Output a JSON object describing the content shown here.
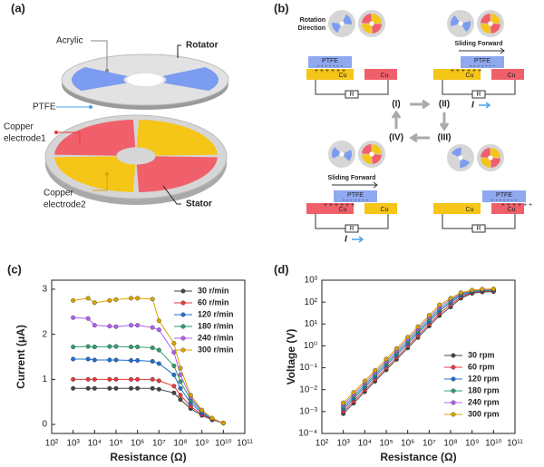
{
  "panel_labels": [
    "(a)",
    "(b)",
    "(c)",
    "(d)"
  ],
  "diagram_a": {
    "acrylic": "Acrylic",
    "rotator": "Rotator",
    "ptfe": "PTFE",
    "electrode1": [
      "Copper",
      "electrode1"
    ],
    "electrode2": [
      "Copper",
      "electrode2"
    ],
    "stator": "Stator"
  },
  "diagram_b": {
    "rotation": [
      "Rotation",
      "Direction"
    ],
    "ptfe": "PTFE",
    "cu": "Cu",
    "r": "R",
    "states": [
      "(I)",
      "(II)",
      "(III)",
      "(IV)"
    ],
    "sliding": "Sliding Forward",
    "current": "I",
    "plus": "+ + + + + +",
    "minus": "- - - - - - -"
  },
  "chart_data": [
    {
      "type": "line",
      "xlabel": "Resistance (Ω)",
      "ylabel": "Current (μA)",
      "xscale": "log",
      "yscale": "linear",
      "legend": "upper right",
      "xlim": [
        100,
        100000000000
      ],
      "ylim": [
        -0.2,
        3.2
      ],
      "xticks": [
        {
          "value": 100,
          "label": "10²"
        },
        {
          "value": 1000,
          "label": "10³"
        },
        {
          "value": 10000,
          "label": "10⁴"
        },
        {
          "value": 100000,
          "label": "10⁵"
        },
        {
          "value": 1000000,
          "label": "10⁶"
        },
        {
          "value": 10000000,
          "label": "10⁷"
        },
        {
          "value": 100000000,
          "label": "10⁸"
        },
        {
          "value": 1000000000,
          "label": "10⁹"
        },
        {
          "value": 10000000000,
          "label": "10¹⁰"
        },
        {
          "value": 100000000000,
          "label": "10¹¹"
        }
      ],
      "yticks": [
        0,
        1,
        2,
        3
      ],
      "x": [
        1000,
        5000,
        10000,
        50000,
        100000,
        500000,
        1000000,
        5000000,
        10000000,
        50000000,
        100000000,
        300000000,
        1000000000,
        3000000000,
        10000000000
      ],
      "series": [
        {
          "name": "30 r/min",
          "color": "#444444",
          "values": [
            0.8,
            0.8,
            0.8,
            0.8,
            0.8,
            0.8,
            0.8,
            0.8,
            0.78,
            0.7,
            0.55,
            0.35,
            0.2,
            0.1,
            0.03
          ]
        },
        {
          "name": "60 r/min",
          "color": "#e8383d",
          "values": [
            1.0,
            1.0,
            1.0,
            1.0,
            1.0,
            1.0,
            1.0,
            1.0,
            0.97,
            0.85,
            0.65,
            0.4,
            0.22,
            0.11,
            0.03
          ]
        },
        {
          "name": "120 r/min",
          "color": "#1f6fd0",
          "values": [
            1.45,
            1.45,
            1.43,
            1.43,
            1.43,
            1.42,
            1.42,
            1.4,
            1.35,
            1.1,
            0.8,
            0.48,
            0.25,
            0.12,
            0.03
          ]
        },
        {
          "name": "180 r/min",
          "color": "#2e9e6e",
          "values": [
            1.72,
            1.73,
            1.72,
            1.73,
            1.73,
            1.72,
            1.72,
            1.7,
            1.65,
            1.3,
            0.95,
            0.55,
            0.28,
            0.13,
            0.03
          ]
        },
        {
          "name": "240 r/min",
          "color": "#b060f0",
          "values": [
            2.37,
            2.35,
            2.2,
            2.18,
            2.17,
            2.2,
            2.2,
            2.15,
            2.1,
            1.6,
            1.1,
            0.6,
            0.3,
            0.13,
            0.03
          ]
        },
        {
          "name": "300 r/min",
          "color": "#d9a400",
          "values": [
            2.75,
            2.8,
            2.7,
            2.75,
            2.77,
            2.8,
            2.8,
            2.78,
            2.3,
            1.8,
            1.25,
            0.65,
            0.32,
            0.14,
            0.03
          ]
        }
      ]
    },
    {
      "type": "line",
      "xlabel": "Resistance (Ω)",
      "ylabel": "Voltage (V)",
      "xscale": "log",
      "yscale": "log",
      "legend": "lower right",
      "xlim": [
        100,
        100000000000
      ],
      "ylim": [
        0.0001,
        1000
      ],
      "xticks": [
        {
          "value": 100,
          "label": "10²"
        },
        {
          "value": 1000,
          "label": "10³"
        },
        {
          "value": 10000,
          "label": "10⁴"
        },
        {
          "value": 100000,
          "label": "10⁵"
        },
        {
          "value": 1000000,
          "label": "10⁶"
        },
        {
          "value": 10000000,
          "label": "10⁷"
        },
        {
          "value": 100000000,
          "label": "10⁸"
        },
        {
          "value": 1000000000,
          "label": "10⁹"
        },
        {
          "value": 10000000000,
          "label": "10¹⁰"
        },
        {
          "value": 100000000000,
          "label": "10¹¹"
        }
      ],
      "yticks": [
        {
          "value": 0.0001,
          "label": "10⁻⁴"
        },
        {
          "value": 0.001,
          "label": "10⁻³"
        },
        {
          "value": 0.01,
          "label": "10⁻²"
        },
        {
          "value": 0.1,
          "label": "10⁻¹"
        },
        {
          "value": 1,
          "label": "10⁰"
        },
        {
          "value": 10,
          "label": "10¹"
        },
        {
          "value": 100,
          "label": "10²"
        },
        {
          "value": 1000,
          "label": "10³"
        }
      ],
      "x": [
        1000,
        3000,
        10000,
        30000,
        100000,
        300000,
        1000000,
        3000000,
        10000000,
        30000000,
        100000000,
        300000000,
        1000000000,
        3000000000,
        10000000000
      ],
      "series": [
        {
          "name": "30 rpm",
          "color": "#444444",
          "values": [
            0.0008,
            0.0024,
            0.008,
            0.024,
            0.08,
            0.24,
            0.8,
            2.4,
            8,
            24,
            60,
            150,
            250,
            290,
            300
          ]
        },
        {
          "name": "60 rpm",
          "color": "#e8383d",
          "values": [
            0.001,
            0.003,
            0.01,
            0.03,
            0.1,
            0.3,
            1,
            3,
            10,
            30,
            75,
            170,
            270,
            310,
            320
          ]
        },
        {
          "name": "120 rpm",
          "color": "#1f6fd0",
          "values": [
            0.0013,
            0.0039,
            0.013,
            0.039,
            0.13,
            0.39,
            1.3,
            3.9,
            13,
            39,
            95,
            200,
            290,
            330,
            340
          ]
        },
        {
          "name": "180 rpm",
          "color": "#2e9e6e",
          "values": [
            0.0016,
            0.0048,
            0.016,
            0.048,
            0.16,
            0.48,
            1.6,
            4.8,
            16,
            48,
            110,
            230,
            310,
            350,
            360
          ]
        },
        {
          "name": "240 rpm",
          "color": "#b060f0",
          "values": [
            0.002,
            0.006,
            0.02,
            0.06,
            0.2,
            0.6,
            2,
            6,
            20,
            60,
            130,
            250,
            330,
            370,
            380
          ]
        },
        {
          "name": "300 rpm",
          "color": "#d9a400",
          "values": [
            0.0025,
            0.0075,
            0.025,
            0.075,
            0.25,
            0.75,
            2.5,
            7.5,
            25,
            75,
            150,
            270,
            350,
            390,
            400
          ]
        }
      ]
    }
  ]
}
